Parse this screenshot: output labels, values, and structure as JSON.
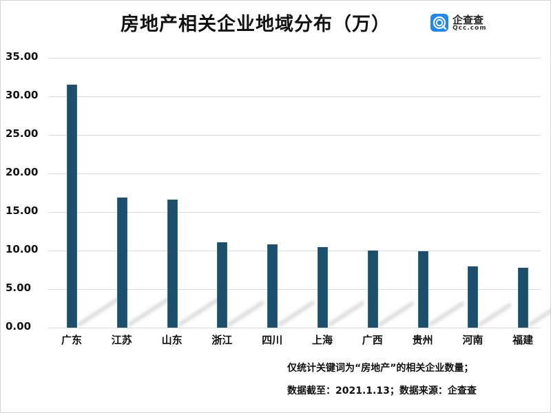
{
  "title": "房地产相关企业地域分布（万）",
  "logo": {
    "name": "企查查",
    "sub": "Qcc.com"
  },
  "notes": [
    "仅统计关键词为“房地产”的相关企业数量；",
    "数据截至：2021.1.13；数据来源：企查查"
  ],
  "y_ticks": [
    "35.00",
    "30.00",
    "25.00",
    "20.00",
    "15.00",
    "10.00",
    "5.00",
    "0.00"
  ],
  "colors": {
    "bar": "#1b4f6b",
    "grid": "#d9d9d9",
    "logo": "#1e88f0"
  },
  "chart_data": {
    "type": "bar",
    "title": "房地产相关企业地域分布（万）",
    "xlabel": "",
    "ylabel": "",
    "categories": [
      "广东",
      "江苏",
      "山东",
      "浙江",
      "四川",
      "上海",
      "广西",
      "贵州",
      "河南",
      "福建"
    ],
    "values": [
      31.5,
      16.87,
      16.64,
      11.1,
      10.78,
      10.45,
      10.03,
      9.95,
      7.92,
      7.77
    ],
    "ylim": [
      0,
      35
    ],
    "yticks": [
      0,
      5,
      10,
      15,
      20,
      25,
      30,
      35
    ],
    "grid": true,
    "legend": "none",
    "unit": "万",
    "annotations": [
      "仅统计关键词为“房地产”的相关企业数量；",
      "数据截至：2021.1.13；数据来源：企查查"
    ]
  }
}
